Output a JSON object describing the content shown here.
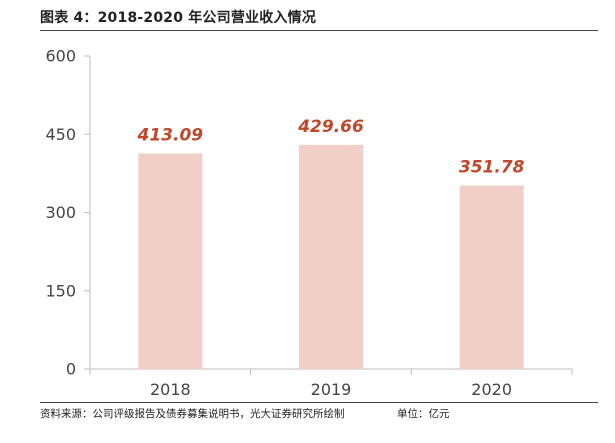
{
  "figure": {
    "title": "图表 4：2018-2020 年公司营业收入情况",
    "source": "资料来源：公司评级报告及债券募集说明书，光大证券研究所绘制",
    "unit": "单位：亿元"
  },
  "colors": {
    "bar": "#f2cfc6",
    "data_label": "#c0472a",
    "axis": "#bdbdbd"
  },
  "chart_data": {
    "type": "bar",
    "title": "",
    "xlabel": "",
    "ylabel": "",
    "categories": [
      "2018",
      "2019",
      "2020"
    ],
    "values": [
      413.09,
      429.66,
      351.78
    ],
    "data_labels": [
      "413.09",
      "429.66",
      "351.78"
    ],
    "ylim": [
      0,
      600
    ],
    "yticks": [
      0,
      150,
      300,
      450,
      600
    ],
    "grid": false,
    "legend": "none"
  }
}
